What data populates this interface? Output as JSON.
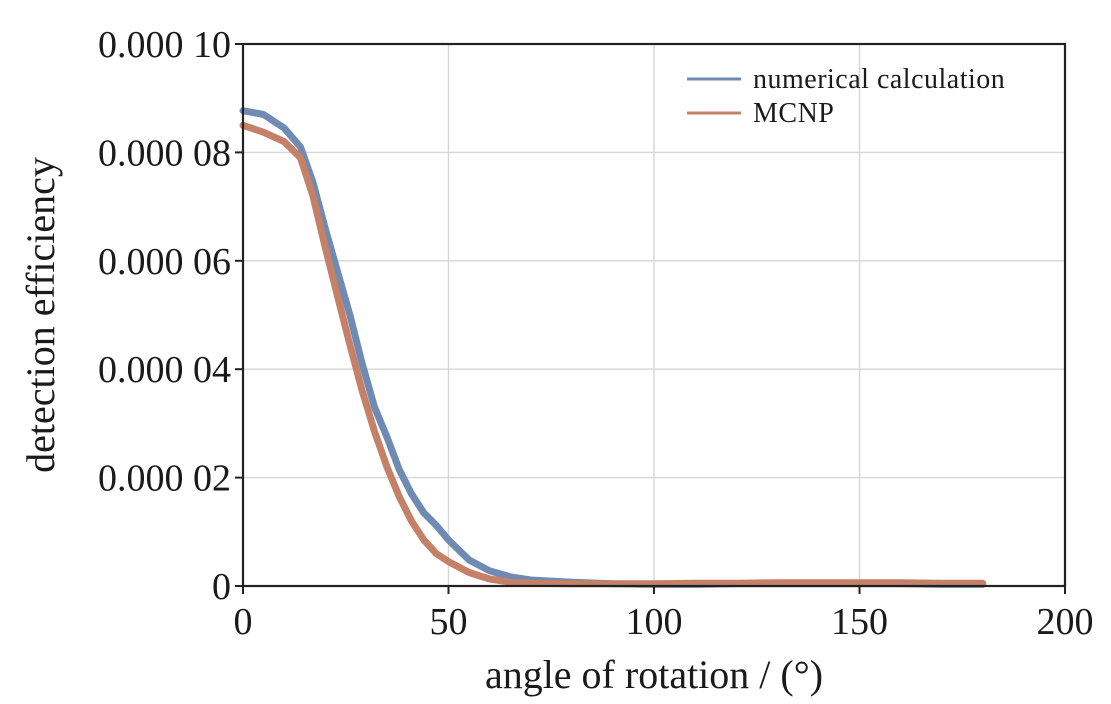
{
  "chart_data": {
    "type": "line",
    "title": "",
    "xlabel": "angle of rotation / (°)",
    "ylabel": "detection efficiency",
    "xlim": [
      0,
      200
    ],
    "ylim": [
      0,
      0.0001
    ],
    "x_ticks": [
      0,
      50,
      100,
      150,
      200
    ],
    "x_tick_labels": [
      "0",
      "50",
      "100",
      "150",
      "200"
    ],
    "y_ticks": [
      0,
      2e-05,
      4e-05,
      6e-05,
      8e-05,
      0.0001
    ],
    "y_tick_labels": [
      "0",
      "0.000 02",
      "0.000 04",
      "0.000 06",
      "0.000 08",
      "0.000 10"
    ],
    "grid": true,
    "legend_position": "top-right",
    "x": [
      0,
      5,
      10,
      14,
      17,
      20,
      23,
      26,
      29,
      32,
      35,
      38,
      41,
      44,
      47,
      50,
      55,
      60,
      65,
      70,
      80,
      90,
      100,
      110,
      120,
      130,
      140,
      150,
      160,
      170,
      180
    ],
    "series": [
      {
        "name": "numerical calculation",
        "color": "#6f8ab3",
        "values": [
          8.77e-05,
          8.7e-05,
          8.45e-05,
          8.1e-05,
          7.45e-05,
          6.6e-05,
          5.8e-05,
          5e-05,
          4.1e-05,
          3.3e-05,
          2.75e-05,
          2.15e-05,
          1.7e-05,
          1.35e-05,
          1.12e-05,
          8.5e-06,
          4.8e-06,
          2.8e-06,
          1.7e-06,
          1.1e-06,
          7e-07,
          4e-07,
          3e-07,
          3e-07,
          4e-07,
          4e-07,
          4e-07,
          4e-07,
          4e-07,
          3e-07,
          3e-07
        ]
      },
      {
        "name": "MCNP",
        "color": "#c48167",
        "values": [
          8.5e-05,
          8.37e-05,
          8.2e-05,
          7.9e-05,
          7.2e-05,
          6.25e-05,
          5.35e-05,
          4.45e-05,
          3.6e-05,
          2.85e-05,
          2.2e-05,
          1.65e-05,
          1.2e-05,
          8.5e-06,
          6e-06,
          4.5e-06,
          2.5e-06,
          1.3e-06,
          7e-07,
          5e-07,
          4e-07,
          4e-07,
          4e-07,
          5e-07,
          5e-07,
          6e-07,
          6e-07,
          6e-07,
          6e-07,
          5e-07,
          5e-07
        ]
      }
    ]
  },
  "colors": {
    "axis": "#222222",
    "grid": "#d6d6d6",
    "background": "#ffffff"
  }
}
